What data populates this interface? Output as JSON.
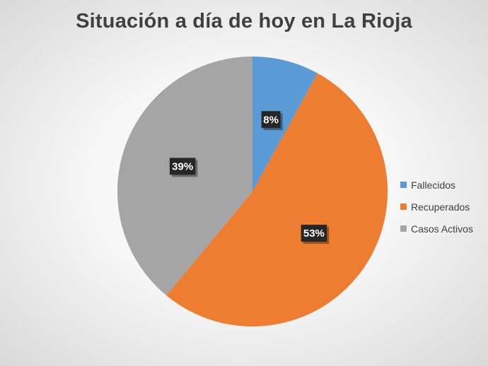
{
  "chart_data": {
    "type": "pie",
    "title": "Situación a día de hoy en La Rioja",
    "categories": [
      "Fallecidos",
      "Recuperados",
      "Casos Activos"
    ],
    "values": [
      8,
      53,
      39
    ],
    "labels": [
      "8%",
      "53%",
      "39%"
    ],
    "colors": [
      "#5b9bd5",
      "#ed7d31",
      "#a5a5a5"
    ],
    "legend_position": "right"
  }
}
